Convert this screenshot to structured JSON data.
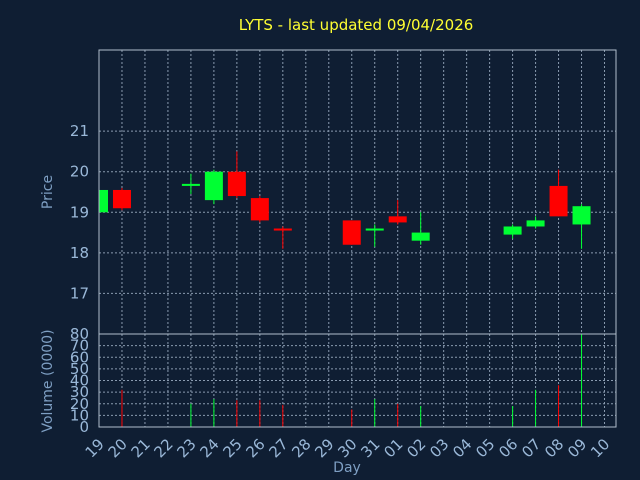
{
  "chart_data": {
    "type": "candlestick",
    "title": "LYTS - last updated 09/04/2026",
    "xlabel": "Day",
    "price": {
      "ylabel": "Price",
      "ylim": [
        16,
        23
      ],
      "yticks": [
        "17",
        "18",
        "19",
        "20",
        "21"
      ]
    },
    "volume": {
      "ylabel": "Volume (0000)",
      "ylim": [
        0,
        80
      ],
      "yticks": [
        "0",
        "10",
        "20",
        "30",
        "40",
        "50",
        "60",
        "70",
        "80"
      ]
    },
    "x_ticks": [
      "19",
      "20",
      "21",
      "22",
      "23",
      "24",
      "25",
      "26",
      "27",
      "28",
      "29",
      "30",
      "31",
      "01",
      "02",
      "03",
      "04",
      "05",
      "06",
      "07",
      "08",
      "09",
      "10"
    ],
    "candles": [
      {
        "x": "19",
        "open": 19.0,
        "close": 19.55,
        "high": 19.6,
        "low": 18.95,
        "volume": 0
      },
      {
        "x": "20",
        "open": 19.55,
        "close": 19.1,
        "high": 19.6,
        "low": 19.05,
        "volume": 32
      },
      {
        "x": "23",
        "open": 19.65,
        "close": 19.7,
        "high": 19.95,
        "low": 19.45,
        "volume": 20
      },
      {
        "x": "24",
        "open": 19.3,
        "close": 20.0,
        "high": 20.05,
        "low": 19.2,
        "volume": 24
      },
      {
        "x": "25",
        "open": 20.0,
        "close": 19.4,
        "high": 20.5,
        "low": 19.35,
        "volume": 23
      },
      {
        "x": "26",
        "open": 19.35,
        "close": 18.8,
        "high": 19.4,
        "low": 18.75,
        "volume": 23
      },
      {
        "x": "27",
        "open": 18.6,
        "close": 18.55,
        "high": 18.65,
        "low": 18.1,
        "volume": 19
      },
      {
        "x": "30",
        "open": 18.8,
        "close": 18.2,
        "high": 18.8,
        "low": 18.2,
        "volume": 15
      },
      {
        "x": "31",
        "open": 18.55,
        "close": 18.6,
        "high": 18.7,
        "low": 18.15,
        "volume": 24
      },
      {
        "x": "01",
        "open": 18.9,
        "close": 18.75,
        "high": 19.3,
        "low": 18.7,
        "volume": 20
      },
      {
        "x": "02",
        "open": 18.3,
        "close": 18.5,
        "high": 19.0,
        "low": 18.2,
        "volume": 18
      },
      {
        "x": "06",
        "open": 18.45,
        "close": 18.65,
        "high": 18.7,
        "low": 18.35,
        "volume": 18
      },
      {
        "x": "07",
        "open": 18.65,
        "close": 18.8,
        "high": 18.9,
        "low": 18.6,
        "volume": 32
      },
      {
        "x": "08",
        "open": 19.65,
        "close": 18.9,
        "high": 20.05,
        "low": 18.9,
        "volume": 36
      },
      {
        "x": "09",
        "open": 18.7,
        "close": 19.15,
        "high": 19.2,
        "low": 18.1,
        "volume": 80
      }
    ],
    "colors": {
      "up": "#00ff33",
      "down": "#ff0000",
      "title": "#ffff33"
    },
    "grid": true
  }
}
